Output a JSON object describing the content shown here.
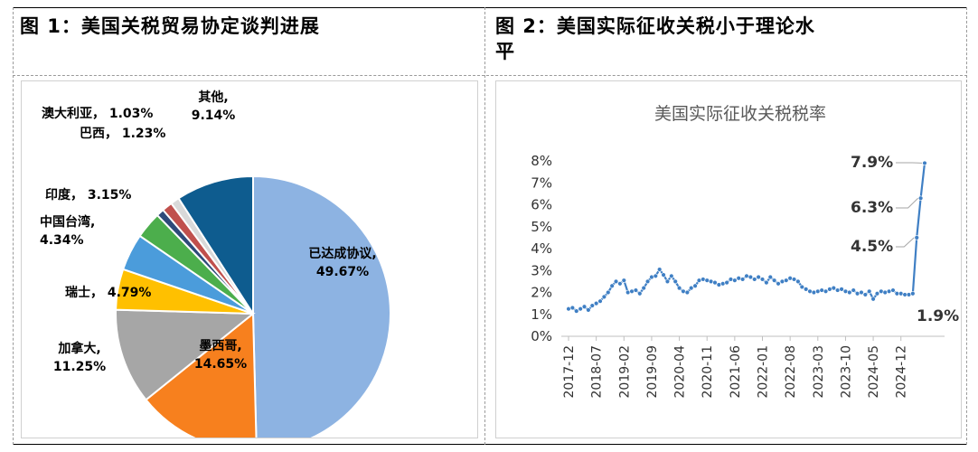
{
  "panel1": {
    "title": "图 1：美国关税贸易协定谈判进展",
    "chart_data": {
      "type": "pie",
      "title": "",
      "slices": [
        {
          "label": "已达成协议,",
          "value": 49.67,
          "value_text": "49.67%",
          "color": "#8db3e2"
        },
        {
          "label": "墨西哥,",
          "value": 14.65,
          "value_text": "14.65%",
          "color": "#f7801e"
        },
        {
          "label": "加拿大,",
          "value": 11.25,
          "value_text": "11.25%",
          "color": "#a6a6a6"
        },
        {
          "label": "瑞士，",
          "value": 4.79,
          "value_text": "4.79%",
          "color": "#ffc000"
        },
        {
          "label": "中国台湾,",
          "value": 4.34,
          "value_text": "4.34%",
          "color": "#4b9cdb"
        },
        {
          "label": "印度，",
          "value": 3.15,
          "value_text": "3.15%",
          "color": "#4cae4c"
        },
        {
          "label": "",
          "value": 0.9,
          "value_text": "",
          "color": "#2e4a7a"
        },
        {
          "label": "巴西，",
          "value": 1.23,
          "value_text": "1.23%",
          "color": "#c0504d"
        },
        {
          "label": "澳大利亚，",
          "value": 1.03,
          "value_text": "1.03%",
          "color": "#d9d9d9"
        },
        {
          "label": "其他,",
          "value": 9.14,
          "value_text": "9.14%",
          "color": "#0e5c8f"
        }
      ]
    }
  },
  "panel2": {
    "title_line1": "图 2：美国实际征收关税小于理论水",
    "title_line2": "平",
    "chart_data": {
      "type": "line",
      "title": "美国实际征收关税税率",
      "ylim": [
        0,
        8
      ],
      "yticks": [
        "0%",
        "1%",
        "2%",
        "3%",
        "4%",
        "5%",
        "6%",
        "7%",
        "8%"
      ],
      "xtick_labels": [
        "2017-12",
        "2018-07",
        "2019-02",
        "2019-09",
        "2020-04",
        "2020-11",
        "2021-06",
        "2022-01",
        "2022-08",
        "2023-03",
        "2023-10",
        "2024-05",
        "2024-12"
      ],
      "line_color": "#3f7fc4",
      "series": [
        {
          "values": [
            1.25,
            1.3,
            1.15,
            1.25,
            1.35,
            1.2,
            1.4,
            1.5,
            1.6,
            1.8,
            2.0,
            2.3,
            2.5,
            2.4,
            2.55,
            2.0,
            2.05,
            2.1,
            1.95,
            2.2,
            2.5,
            2.7,
            2.75,
            3.05,
            2.8,
            2.5,
            2.75,
            2.5,
            2.2,
            2.05,
            2.0,
            2.2,
            2.3,
            2.55,
            2.6,
            2.55,
            2.5,
            2.45,
            2.35,
            2.4,
            2.45,
            2.6,
            2.55,
            2.65,
            2.6,
            2.75,
            2.7,
            2.6,
            2.7,
            2.6,
            2.45,
            2.7,
            2.55,
            2.4,
            2.5,
            2.55,
            2.65,
            2.6,
            2.5,
            2.25,
            2.15,
            2.05,
            2.0,
            2.05,
            2.1,
            2.05,
            2.15,
            2.2,
            2.1,
            2.15,
            2.05,
            2.0,
            2.1,
            1.95,
            2.0,
            1.9,
            2.05,
            1.7,
            1.95,
            2.05,
            2.0,
            2.05,
            2.1,
            1.95,
            1.95,
            1.9,
            1.9,
            1.95,
            4.5,
            6.3,
            7.9
          ]
        }
      ],
      "annotations": [
        {
          "text": "7.9%",
          "value": 7.9
        },
        {
          "text": "6.3%",
          "value": 6.3
        },
        {
          "text": "4.5%",
          "value": 4.5
        },
        {
          "text": "1.9%",
          "value": 1.9
        }
      ]
    }
  }
}
